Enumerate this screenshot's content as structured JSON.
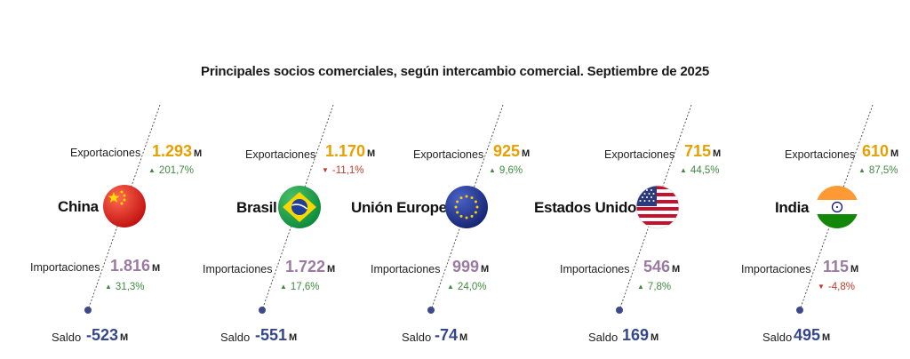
{
  "title": "Principales socios comerciales, según intercambio comercial. Septiembre de 2025",
  "labels": {
    "exports": "Exportaciones",
    "imports": "Importaciones",
    "balance": "Saldo",
    "unit": "M"
  },
  "colors": {
    "exports": "#e8a000",
    "imports": "#9a7aa0",
    "balance": "#34478c",
    "up": "#3f8a3f",
    "down": "#c0392b"
  },
  "partners": [
    {
      "name": "China",
      "flag": "china-flag-icon",
      "exports": "1.293",
      "exports_change": "201,7%",
      "exports_dir": "up",
      "imports": "1.816",
      "imports_change": "31,3%",
      "imports_dir": "up",
      "balance": "-523"
    },
    {
      "name": "Brasil",
      "flag": "brazil-flag-icon",
      "exports": "1.170",
      "exports_change": "-11,1%",
      "exports_dir": "down",
      "imports": "1.722",
      "imports_change": "17,6%",
      "imports_dir": "up",
      "balance": "-551"
    },
    {
      "name": "Unión Europea",
      "flag": "eu-flag-icon",
      "exports": "925",
      "exports_change": "9,6%",
      "exports_dir": "up",
      "imports": "999",
      "imports_change": "24,0%",
      "imports_dir": "up",
      "balance": "-74"
    },
    {
      "name": "Estados Unidos",
      "flag": "usa-flag-icon",
      "exports": "715",
      "exports_change": "44,5%",
      "exports_dir": "up",
      "imports": "546",
      "imports_change": "7,8%",
      "imports_dir": "up",
      "balance": "169"
    },
    {
      "name": "India",
      "flag": "india-flag-icon",
      "exports": "610",
      "exports_change": "87,5%",
      "exports_dir": "up",
      "imports": "115",
      "imports_change": "-4,8%",
      "imports_dir": "down",
      "balance": "495"
    }
  ]
}
